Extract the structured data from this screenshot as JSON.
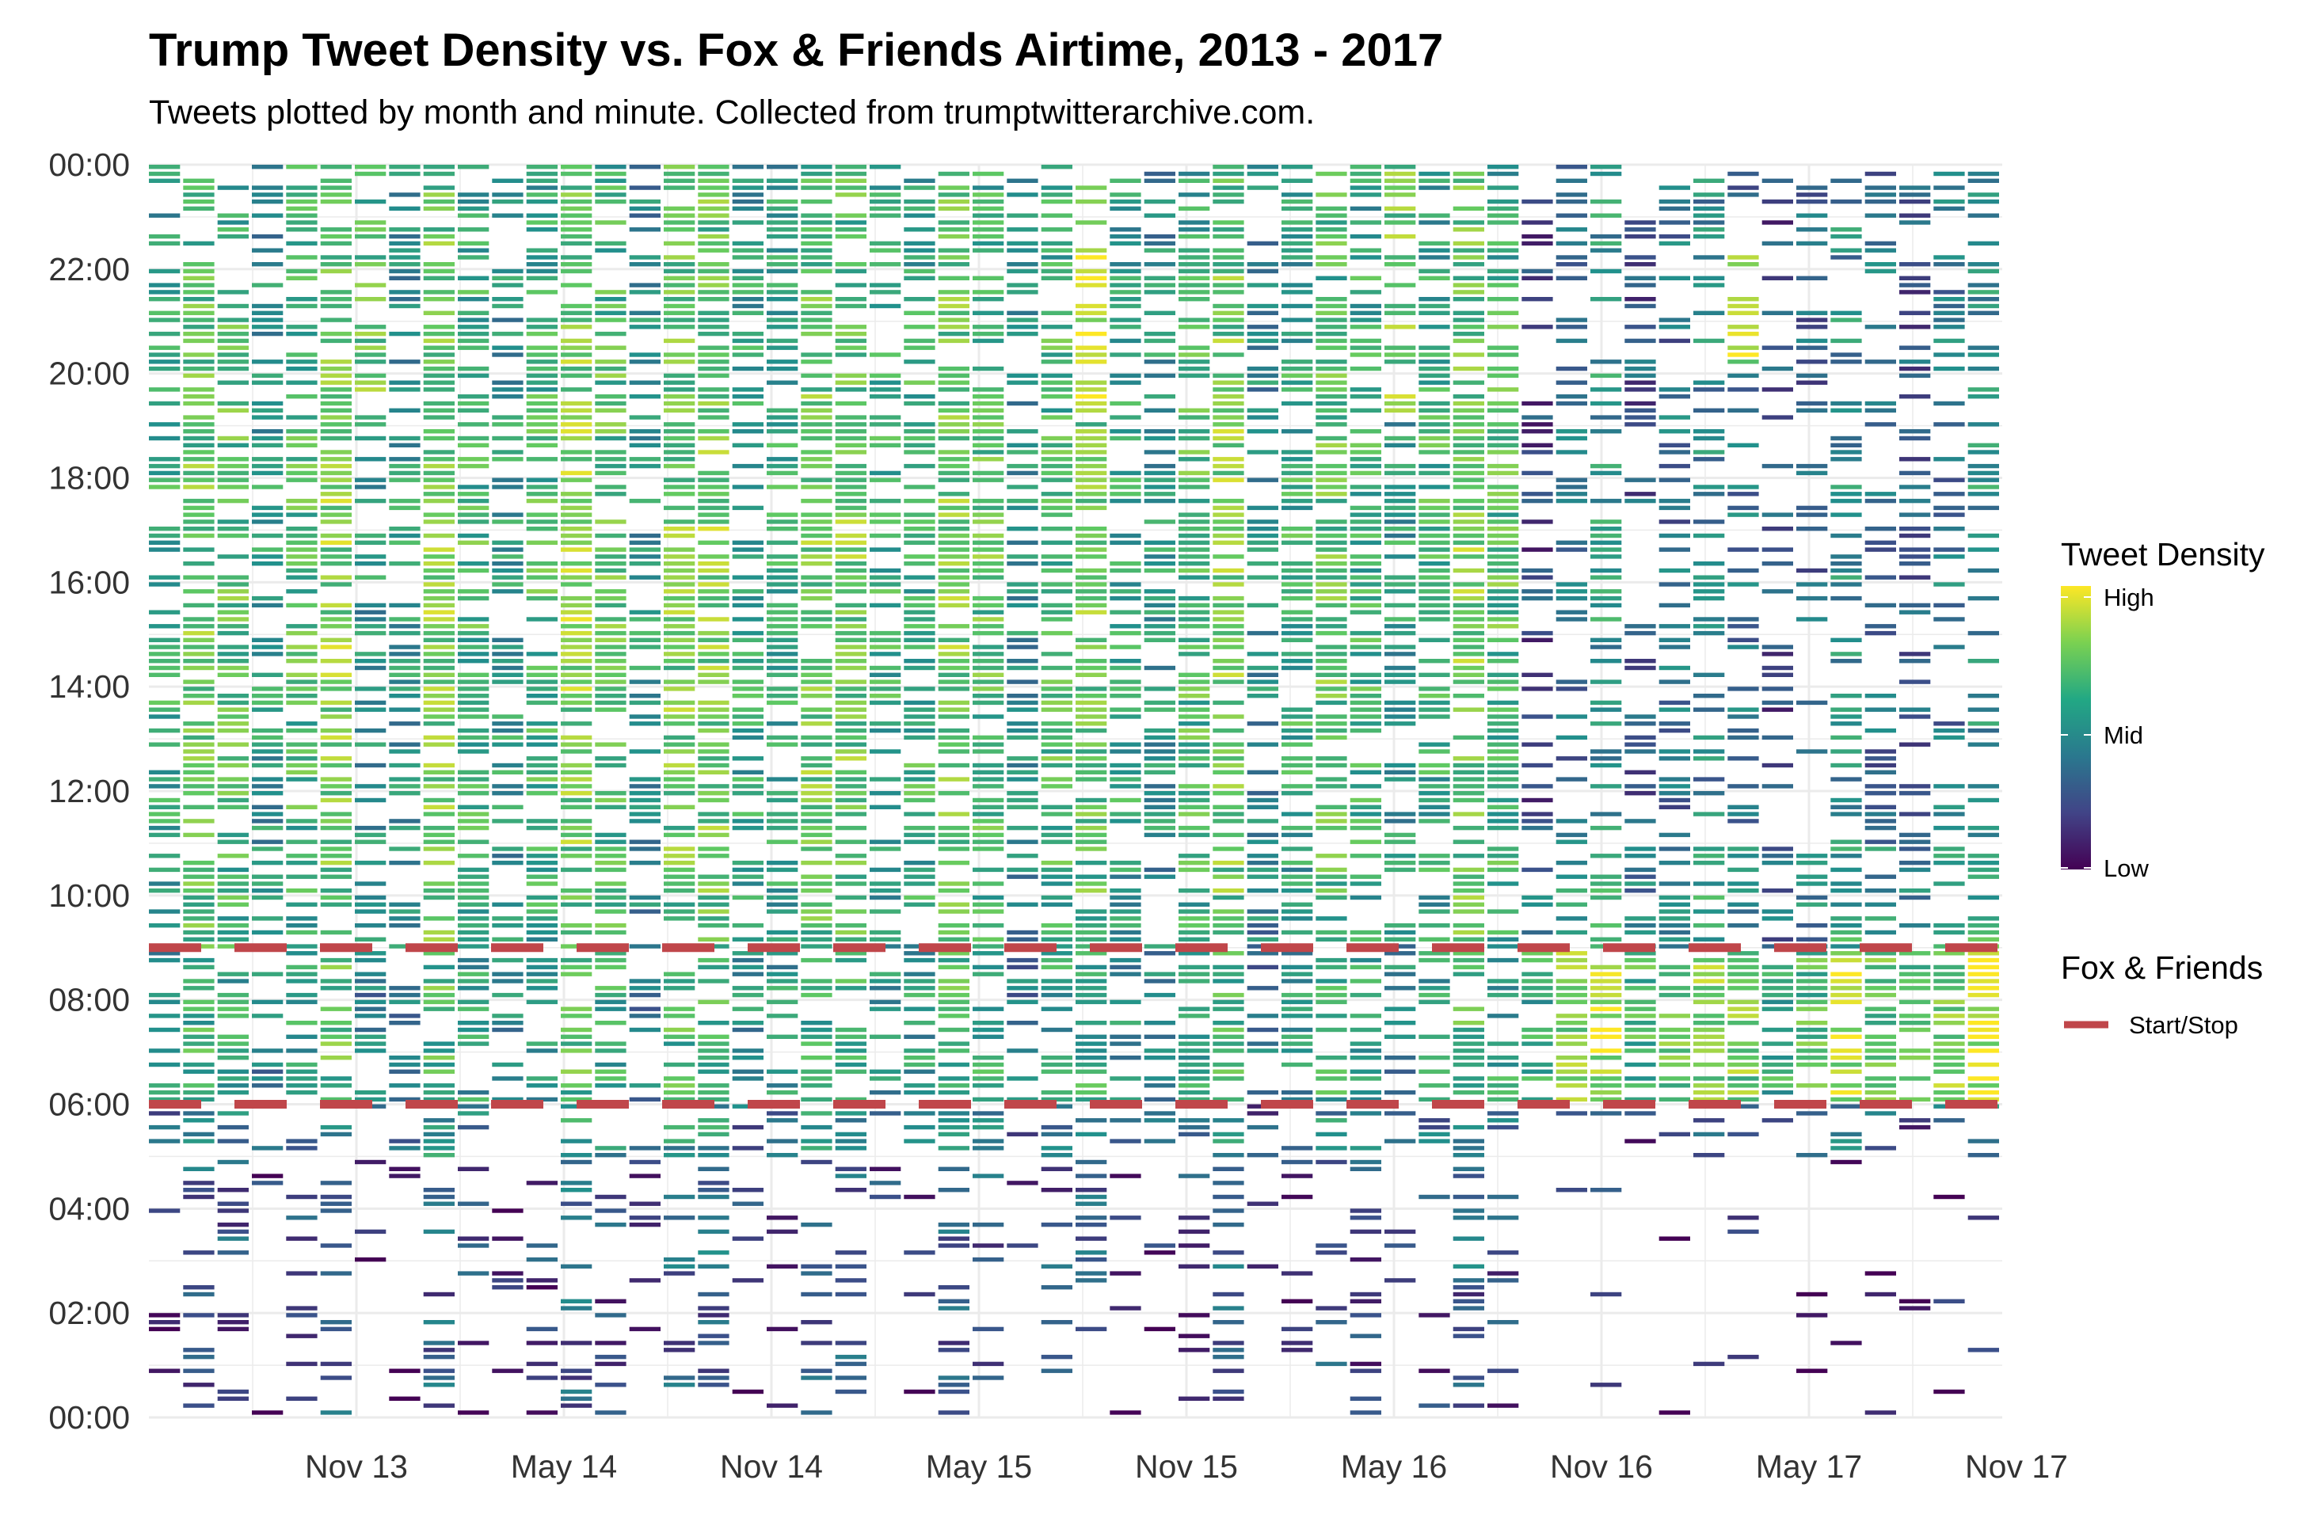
{
  "chart_data": {
    "type": "heatmap",
    "title": "Trump Tweet Density vs. Fox & Friends Airtime, 2013 - 2017",
    "subtitle": "Tweets plotted by month and minute. Collected from trumptwitterarchive.com.",
    "x_ticks": [
      "Nov 13",
      "May 14",
      "Nov 14",
      "May 15",
      "Nov 15",
      "May 16",
      "Nov 16",
      "May 17",
      "Nov 17"
    ],
    "y_ticks": [
      "00:00",
      "02:00",
      "04:00",
      "06:00",
      "08:00",
      "10:00",
      "12:00",
      "14:00",
      "16:00",
      "18:00",
      "20:00",
      "22:00",
      "00:00"
    ],
    "y_range_hours": [
      0,
      24
    ],
    "grid": true,
    "legend_position": "right",
    "density_legend": {
      "title": "Tweet Density",
      "labels": [
        "High",
        "Mid",
        "Low"
      ],
      "colors": [
        "#fde725",
        "#7ad151",
        "#22a884",
        "#2a788e",
        "#414487",
        "#440154"
      ]
    },
    "fox_legend": {
      "title": "Fox & Friends",
      "label": "Start/Stop",
      "color": "#c0464a"
    },
    "fox_friends_hours": [
      6,
      9
    ]
  }
}
